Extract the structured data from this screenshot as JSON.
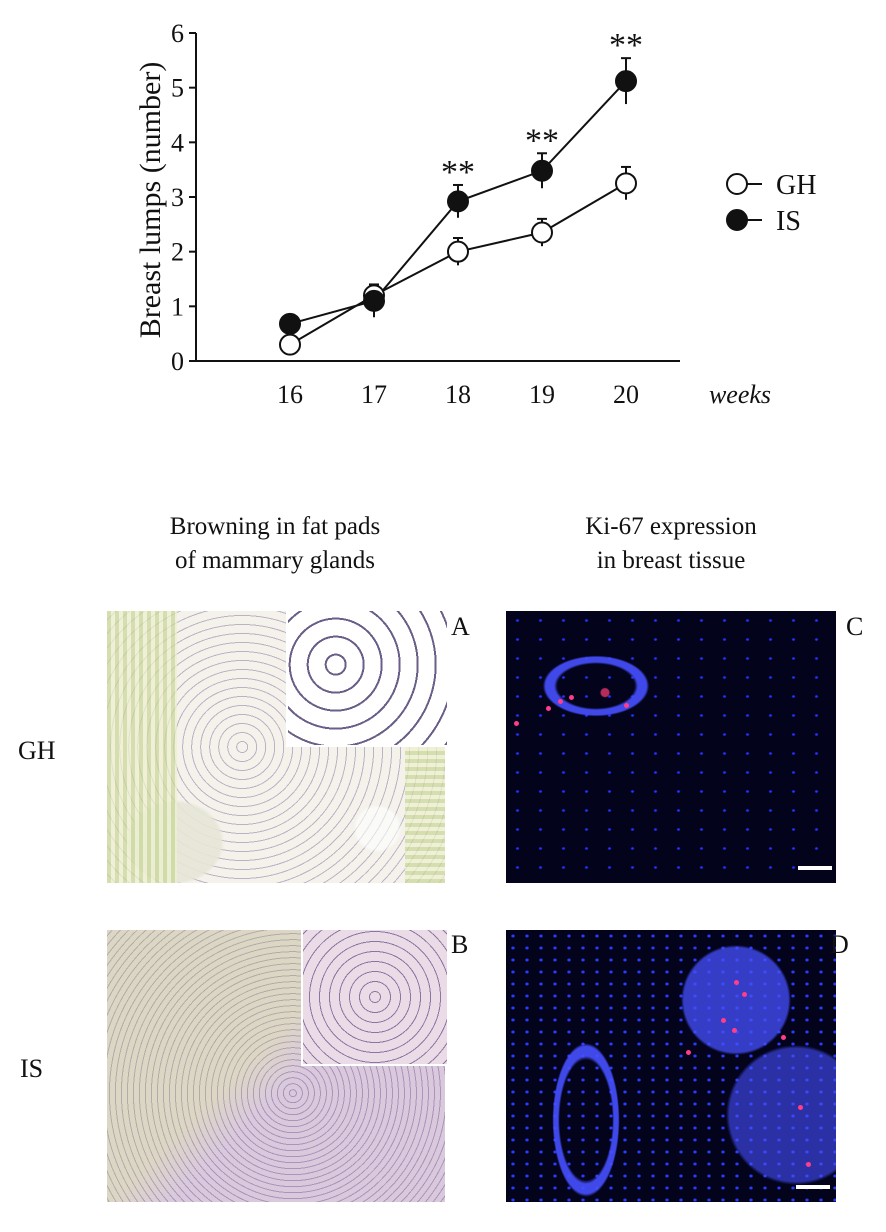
{
  "chart_data": {
    "type": "line",
    "x": [
      16,
      17,
      18,
      19,
      20
    ],
    "xlabel": "weeks",
    "ylabel": "Breast lumps (number)",
    "ylim": [
      0,
      6
    ],
    "yticks": [
      0,
      1,
      2,
      3,
      4,
      5,
      6
    ],
    "grid": false,
    "legend": "right",
    "series": [
      {
        "name": "GH",
        "marker": "open-circle",
        "values": [
          0.3,
          1.2,
          2.0,
          2.35,
          3.25
        ],
        "error": [
          0.05,
          0.2,
          0.25,
          0.25,
          0.3
        ]
      },
      {
        "name": "IS",
        "marker": "filled-circle",
        "values": [
          0.68,
          1.1,
          2.92,
          3.48,
          5.12
        ],
        "error": [
          0.1,
          0.3,
          0.3,
          0.32,
          0.42
        ]
      }
    ],
    "annotations": [
      {
        "x": 18,
        "text": "**"
      },
      {
        "x": 19,
        "text": "**"
      },
      {
        "x": 20,
        "text": "**"
      }
    ]
  },
  "figure": {
    "col_titles": [
      "Browning in fat pads\nof mammary glands",
      "Ki-67 expression\nin breast tissue"
    ],
    "row_labels": [
      "GH",
      "IS"
    ],
    "panel_letters": [
      "A",
      "B",
      "C",
      "D"
    ]
  }
}
